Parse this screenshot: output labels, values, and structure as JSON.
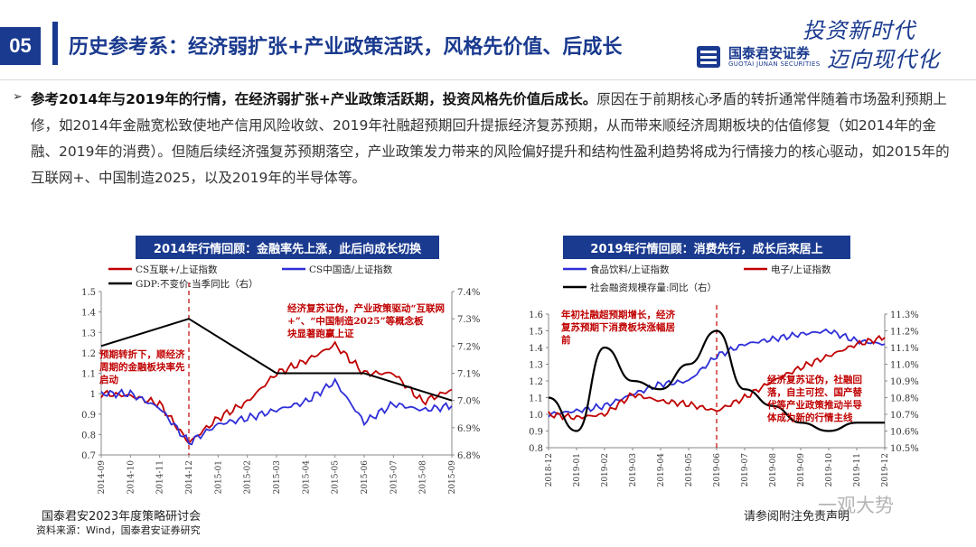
{
  "header": {
    "section_number": "05",
    "title": "历史参考系：经济弱扩张+产业政策活跃，风格先价值、后成长"
  },
  "logo": {
    "name_cn": "国泰君安证券",
    "name_en": "GUOTAI JUNAN SECURITIES",
    "slogan_line1": "投资新时代",
    "slogan_line2": "迈向现代化",
    "brand_color": "#1a3a8f"
  },
  "body": {
    "bullet": "➢",
    "bold_lead": "参考2014年与2019年的行情，在经济弱扩张+产业政策活跃期，投资风格先价值后成长。",
    "text": "原因在于前期核心矛盾的转折通常伴随着市场盈利预期上修，如2014年金融宽松致使地产信用风险收敛、2019年社融超预期回升提振经济复苏预期，从而带来顺经济周期板块的估值修复（如2014年的金融、2019年的消费）。但随后续经济强复苏预期落空，产业政策发力带来的风险偏好提升和结构性盈利趋势将成为行情接力的核心驱动，如2015年的互联网+、中国制造2025，以及2019年的半导体等。"
  },
  "chart_data": [
    {
      "type": "line",
      "title": "2014年行情回顾：金融率先上涨，此后向成长切换",
      "legend": [
        "CS互联+/上证指数",
        "CS中国造/上证指数",
        "GDP:不变价:当季同比（右）"
      ],
      "categories": [
        "2014-09",
        "2014-10",
        "2014-11",
        "2014-12",
        "2015-01",
        "2015-02",
        "2015-03",
        "2015-04",
        "2015-05",
        "2015-06",
        "2015-07",
        "2015-08",
        "2015-09"
      ],
      "y_left": {
        "ticks": [
          "0.7",
          "0.8",
          "0.9",
          "1",
          "1.1",
          "1.2",
          "1.3",
          "1.4",
          "1.5"
        ],
        "range": [
          0.7,
          1.5
        ]
      },
      "y_right": {
        "ticks": [
          "6.8%",
          "6.9%",
          "7.0%",
          "7.1%",
          "7.2%",
          "7.3%",
          "7.4%"
        ],
        "range": [
          6.8,
          7.4
        ]
      },
      "series": [
        {
          "name": "CS互联+/上证指数",
          "color": "#c00000",
          "axis": "left",
          "values": [
            1.0,
            0.99,
            0.95,
            0.76,
            0.88,
            0.96,
            1.1,
            1.16,
            1.24,
            1.1,
            1.1,
            0.96,
            1.02
          ]
        },
        {
          "name": "CS中国造/上证指数",
          "color": "#2f2fd8",
          "axis": "left",
          "values": [
            1.0,
            1.0,
            0.93,
            0.76,
            0.85,
            0.88,
            0.92,
            0.96,
            1.06,
            0.86,
            0.95,
            0.92,
            0.94
          ]
        },
        {
          "name": "GDP:不变价:当季同比（右）",
          "color": "#000000",
          "axis": "right",
          "x": [
            0,
            3,
            6,
            9,
            12
          ],
          "values": [
            7.2,
            7.3,
            7.1,
            7.1,
            7.0
          ]
        }
      ],
      "annotations": [
        "预期转折下，顺经济周期的金融板块率先启动",
        "经济复苏证伪，产业政策驱动“互联网+”、“中国制造2025”等概念板块显著跑赢上证"
      ],
      "marker_x": "2014-12"
    },
    {
      "type": "line",
      "title": "2019年行情回顾：消费先行，成长后来居上",
      "legend": [
        "食品饮料/上证指数",
        "电子/上证指数",
        "社会融资规模存量:同比（右）"
      ],
      "categories": [
        "2018-12",
        "2019-01",
        "2019-02",
        "2019-03",
        "2019-04",
        "2019-05",
        "2019-06",
        "2019-07",
        "2019-08",
        "2019-09",
        "2019-10",
        "2019-11",
        "2019-12"
      ],
      "y_left": {
        "ticks": [
          "0.8",
          "0.9",
          "1.0",
          "1.1",
          "1.2",
          "1.3",
          "1.4",
          "1.5",
          "1.6"
        ],
        "range": [
          0.8,
          1.6
        ]
      },
      "y_right": {
        "ticks": [
          "10.5%",
          "10.6%",
          "10.7%",
          "10.8%",
          "10.9%",
          "11.0%",
          "11.1%",
          "11.2%",
          "11.3%"
        ],
        "range": [
          10.5,
          11.3
        ]
      },
      "series": [
        {
          "name": "食品饮料/上证指数",
          "color": "#2f2fd8",
          "axis": "left",
          "values": [
            1.0,
            1.02,
            1.05,
            1.12,
            1.18,
            1.2,
            1.35,
            1.42,
            1.45,
            1.48,
            1.5,
            1.44,
            1.42
          ]
        },
        {
          "name": "电子/上证指数",
          "color": "#c00000",
          "axis": "left",
          "values": [
            1.0,
            0.98,
            1.0,
            1.12,
            1.08,
            1.06,
            1.02,
            1.1,
            1.2,
            1.28,
            1.35,
            1.42,
            1.46
          ]
        },
        {
          "name": "社会融资规模存量:同比（右）",
          "color": "#000000",
          "axis": "right",
          "values": [
            10.8,
            10.6,
            11.1,
            10.9,
            10.85,
            11.0,
            11.2,
            10.85,
            10.75,
            10.65,
            10.6,
            10.65,
            10.65
          ]
        }
      ],
      "annotations": [
        "年初社融超预期增长，经济复苏预期下消费板块涨幅居前",
        "经济复苏证伪，社融回落，自主可控、国产替代等产业政策推动半导体成为新的行情主线"
      ],
      "marker_x": "2019-06"
    }
  ],
  "footer": {
    "event": "国泰君安2023年度策略研讨会",
    "source": "资料来源：Wind，国泰君安证券研究",
    "disclaimer": "请参阅附注免责声明",
    "watermark": "一观大势"
  }
}
